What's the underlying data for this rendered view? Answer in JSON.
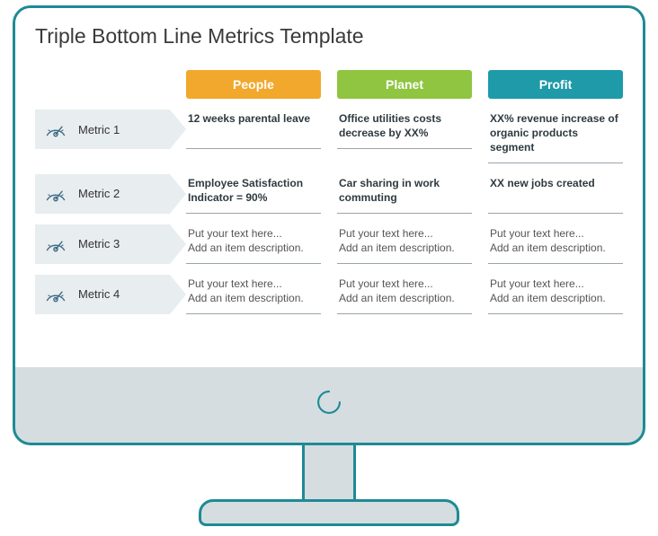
{
  "title": "Triple Bottom Line Metrics Template",
  "style": {
    "frame_color": "#1e8a95",
    "bezel_color": "#d5dde0",
    "metric_bg": "#e8edef",
    "gauge_stroke": "#3a6a85",
    "title_fontsize": 23,
    "header_fontsize": 14,
    "cell_fontsize": 12
  },
  "columns": [
    {
      "label": "People",
      "color": "#f2a82c"
    },
    {
      "label": "Planet",
      "color": "#8fc540"
    },
    {
      "label": "Profit",
      "color": "#1e9aa8"
    }
  ],
  "rows": [
    {
      "label": "Metric 1",
      "bold": true,
      "cells": [
        "12 weeks parental leave",
        "Office utilities costs decrease by XX%",
        "XX% revenue increase of organic products segment"
      ]
    },
    {
      "label": "Metric 2",
      "bold": true,
      "cells": [
        "Employee Satisfaction Indicator = 90%",
        "Car sharing in work commuting",
        "XX new jobs created"
      ]
    },
    {
      "label": "Metric 3",
      "bold": false,
      "cells": [
        "Put your text here...\nAdd an item description.",
        "Put your text here...\nAdd an item description.",
        "Put your text here...\nAdd an item description."
      ]
    },
    {
      "label": "Metric 4",
      "bold": false,
      "cells": [
        "Put your text here...\nAdd an item description.",
        "Put your text here...\nAdd an item description.",
        "Put your text here...\nAdd an item description."
      ]
    }
  ]
}
